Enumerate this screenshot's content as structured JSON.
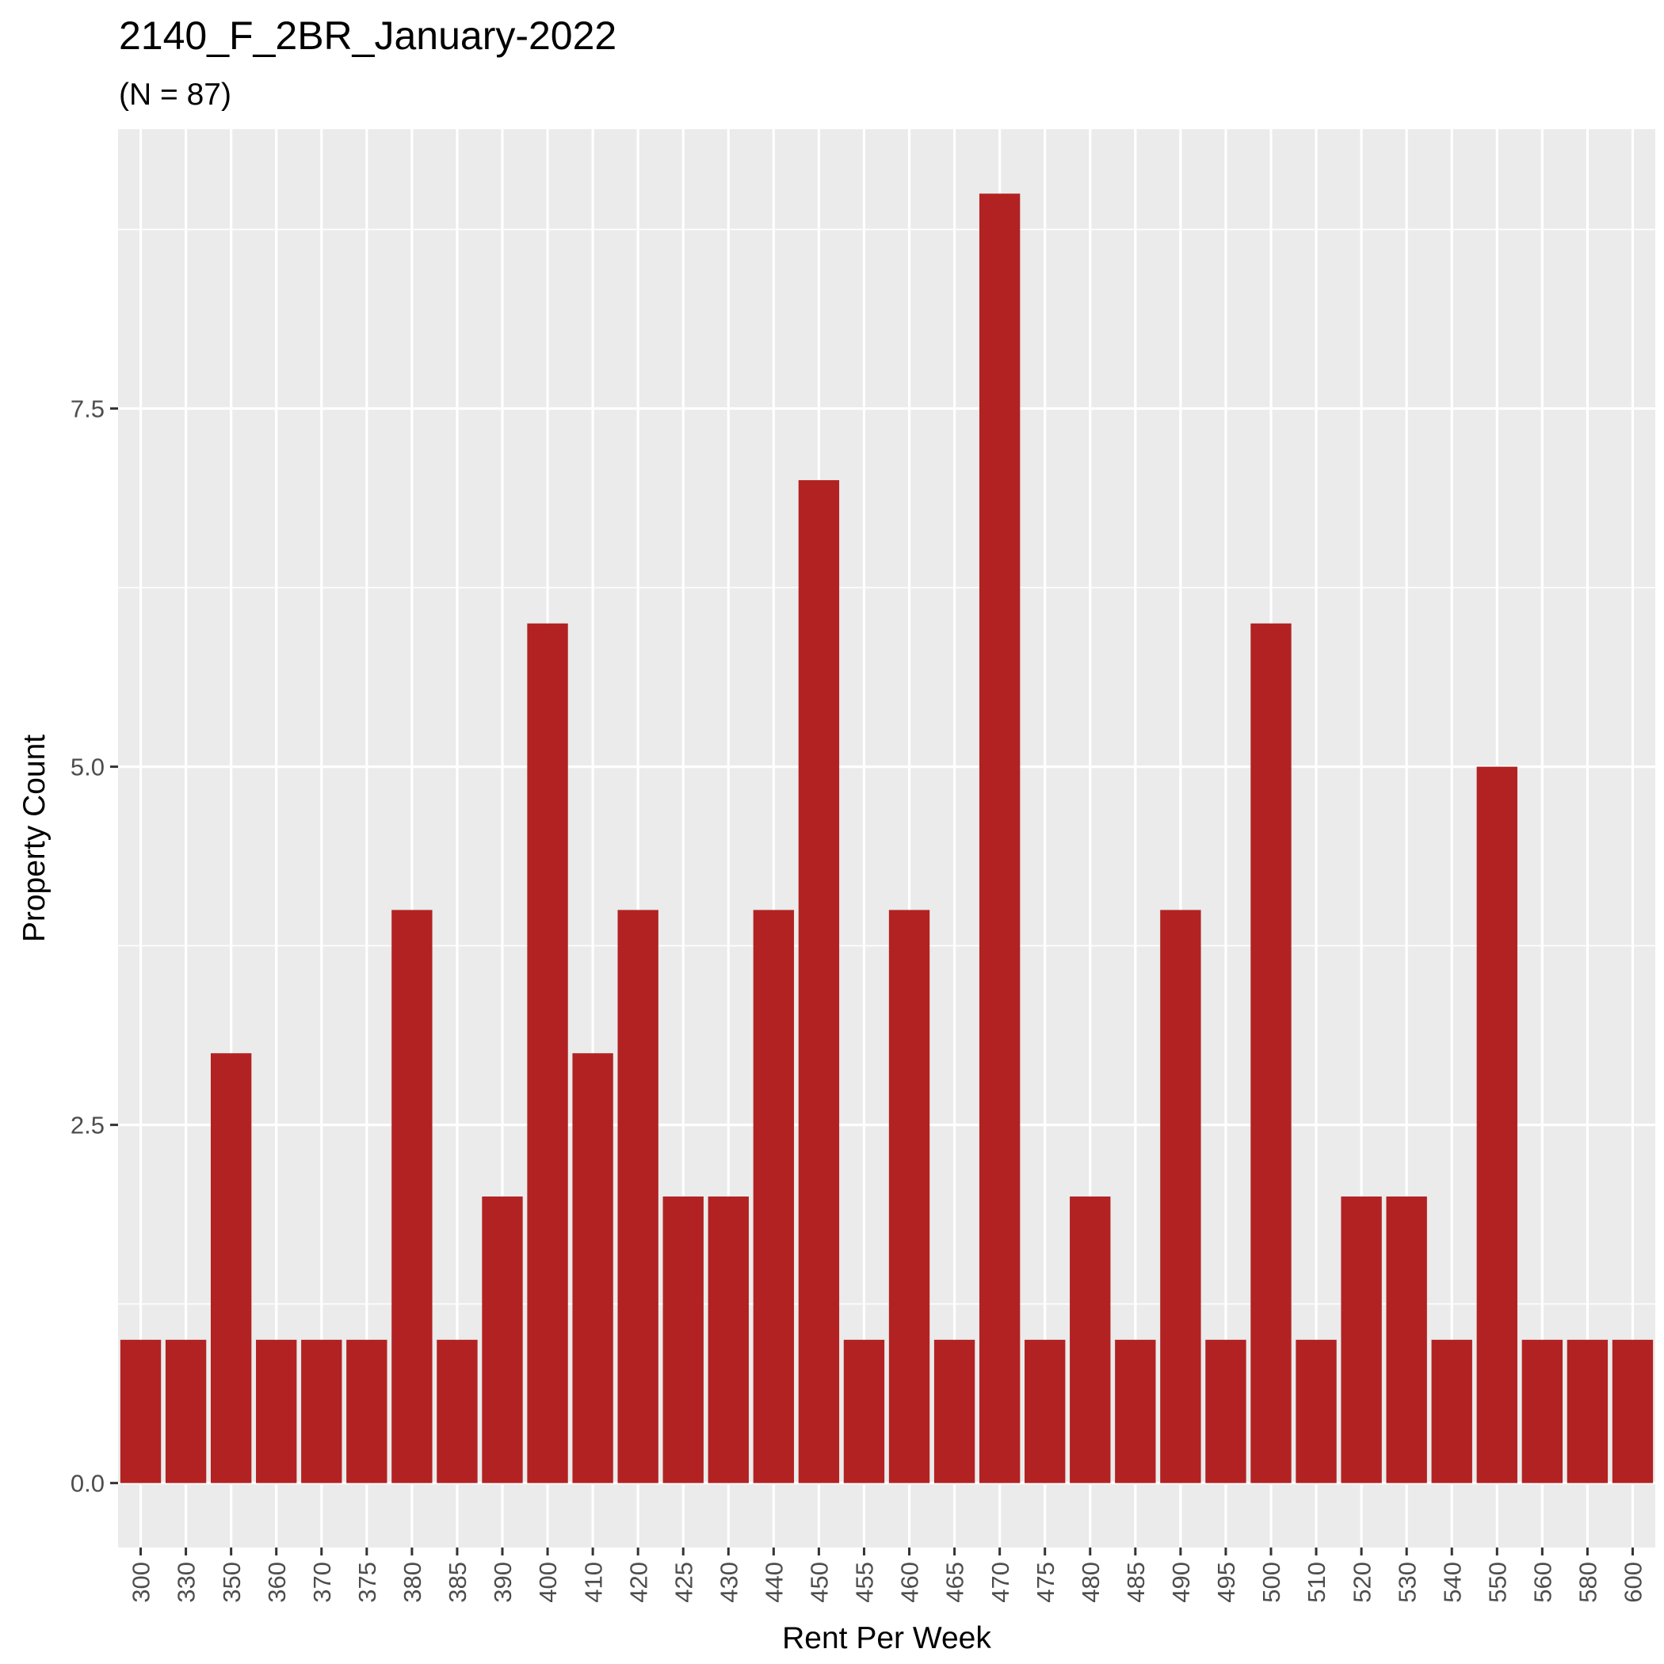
{
  "chart_data": {
    "type": "bar",
    "title": "2140_F_2BR_January-2022",
    "subtitle": "(N = 87)",
    "xlabel": "Rent Per Week",
    "ylabel": "Property Count",
    "categories": [
      "300",
      "330",
      "350",
      "360",
      "370",
      "375",
      "380",
      "385",
      "390",
      "400",
      "410",
      "420",
      "425",
      "430",
      "440",
      "450",
      "455",
      "460",
      "465",
      "470",
      "475",
      "480",
      "485",
      "490",
      "495",
      "500",
      "510",
      "520",
      "530",
      "540",
      "550",
      "560",
      "580",
      "600"
    ],
    "values": [
      1,
      1,
      3,
      1,
      1,
      1,
      4,
      1,
      2,
      6,
      3,
      4,
      2,
      2,
      4,
      7,
      1,
      4,
      1,
      9,
      1,
      2,
      1,
      4,
      1,
      6,
      1,
      2,
      2,
      1,
      5,
      1,
      1,
      1
    ],
    "yticks": [
      "0.0",
      "2.5",
      "5.0",
      "7.5"
    ],
    "ylim": [
      -0.45,
      9.45
    ],
    "grid": true,
    "legend": "none",
    "colors": {
      "bar": "#b22222",
      "panel": "#ebebeb",
      "grid": "#ffffff",
      "tick": "#333333"
    }
  }
}
